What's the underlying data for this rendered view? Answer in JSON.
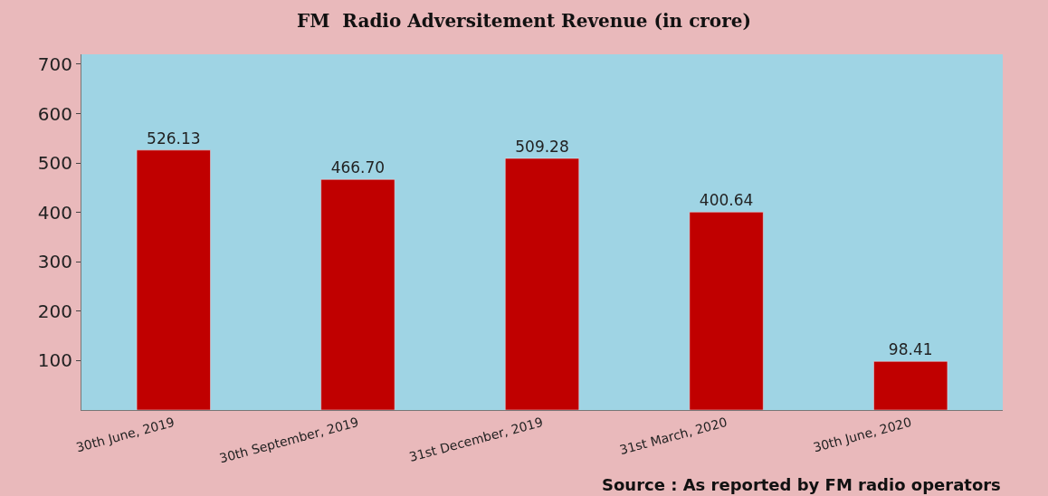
{
  "chart_data": {
    "type": "bar",
    "title": "FM  Radio Adversitement Revenue (in crore)",
    "categories": [
      "30th June, 2019",
      "30th September, 2019",
      "31st December, 2019",
      "31st March, 2020",
      "30th June, 2020"
    ],
    "values": [
      526.13,
      466.7,
      509.28,
      400.64,
      98.41
    ],
    "value_labels": [
      "526.13",
      "466.70",
      "509.28",
      "400.64",
      "98.41"
    ],
    "color": "#c00000",
    "ylim": [
      0,
      720
    ],
    "yticks": [
      100,
      200,
      300,
      400,
      500,
      600,
      700
    ],
    "grid": false,
    "annotations": [
      "Source : As reported by FM radio operators"
    ]
  }
}
